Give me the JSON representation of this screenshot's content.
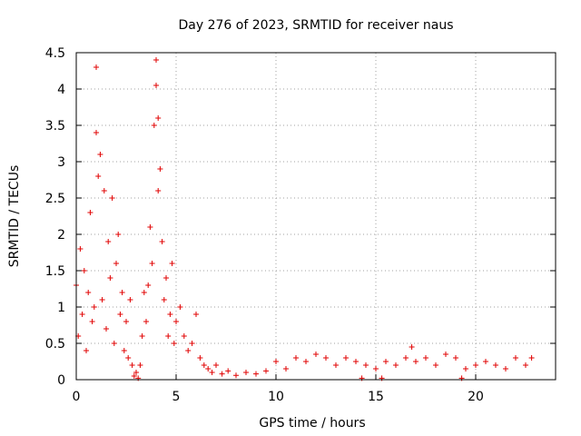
{
  "chart_data": {
    "type": "scatter",
    "title": "Day 276 of 2023, SRMTID for receiver naus",
    "xlabel": "GPS time / hours",
    "ylabel": "SRMTID / TECUs",
    "xlim": [
      0,
      24
    ],
    "ylim": [
      0,
      4.5
    ],
    "x_ticks": [
      0,
      5,
      10,
      15,
      20
    ],
    "x_tick_labels": [
      "0",
      "5",
      "10",
      "15",
      "20"
    ],
    "y_ticks": [
      0,
      0.5,
      1,
      1.5,
      2,
      2.5,
      3,
      3.5,
      4,
      4.5
    ],
    "y_tick_labels": [
      "0",
      "0.5",
      "1",
      "1.5",
      "2",
      "2.5",
      "3",
      "3.5",
      "4",
      "4.5"
    ],
    "grid": true,
    "marker": "+",
    "color": "#e00000",
    "series": [
      {
        "name": "naus",
        "x": [
          0.0,
          0.1,
          0.2,
          0.3,
          0.4,
          0.5,
          0.6,
          0.7,
          0.8,
          0.9,
          1.0,
          1.0,
          1.1,
          1.2,
          1.3,
          1.4,
          1.5,
          1.6,
          1.7,
          1.8,
          1.9,
          2.0,
          2.1,
          2.2,
          2.3,
          2.4,
          2.5,
          2.6,
          2.7,
          2.8,
          2.9,
          3.0,
          3.1,
          3.2,
          3.3,
          3.4,
          3.5,
          3.6,
          3.7,
          3.8,
          3.9,
          4.0,
          4.0,
          4.1,
          4.1,
          4.2,
          4.3,
          4.4,
          4.5,
          4.6,
          4.7,
          4.8,
          4.9,
          5.0,
          5.2,
          5.4,
          5.6,
          5.8,
          6.0,
          6.2,
          6.4,
          6.6,
          6.8,
          7.0,
          7.3,
          7.6,
          8.0,
          8.5,
          9.0,
          9.5,
          10.0,
          10.5,
          11.0,
          11.5,
          12.0,
          12.5,
          13.0,
          13.5,
          14.0,
          14.3,
          14.5,
          15.0,
          15.3,
          15.5,
          16.0,
          16.5,
          16.8,
          17.0,
          17.5,
          18.0,
          18.5,
          19.0,
          19.3,
          19.5,
          20.0,
          20.5,
          21.0,
          21.5,
          22.0,
          22.5,
          22.8
        ],
        "y": [
          1.3,
          0.6,
          1.8,
          0.9,
          1.5,
          0.4,
          1.2,
          2.3,
          0.8,
          1.0,
          4.3,
          3.4,
          2.8,
          3.1,
          1.1,
          2.6,
          0.7,
          1.9,
          1.4,
          2.5,
          0.5,
          1.6,
          2.0,
          0.9,
          1.2,
          0.4,
          0.8,
          0.3,
          1.1,
          0.2,
          0.05,
          0.1,
          0.02,
          0.2,
          0.6,
          1.2,
          0.8,
          1.3,
          2.1,
          1.6,
          3.5,
          4.4,
          4.05,
          3.6,
          2.6,
          2.9,
          1.9,
          1.1,
          1.4,
          0.6,
          0.9,
          1.6,
          0.5,
          0.8,
          1.0,
          0.6,
          0.4,
          0.5,
          0.9,
          0.3,
          0.2,
          0.15,
          0.1,
          0.2,
          0.08,
          0.12,
          0.06,
          0.1,
          0.08,
          0.12,
          0.25,
          0.15,
          0.3,
          0.25,
          0.35,
          0.3,
          0.2,
          0.3,
          0.25,
          0.02,
          0.2,
          0.15,
          0.02,
          0.25,
          0.2,
          0.3,
          0.45,
          0.25,
          0.3,
          0.2,
          0.35,
          0.3,
          0.02,
          0.15,
          0.2,
          0.25,
          0.2,
          0.15,
          0.3,
          0.2,
          0.3
        ]
      }
    ]
  }
}
